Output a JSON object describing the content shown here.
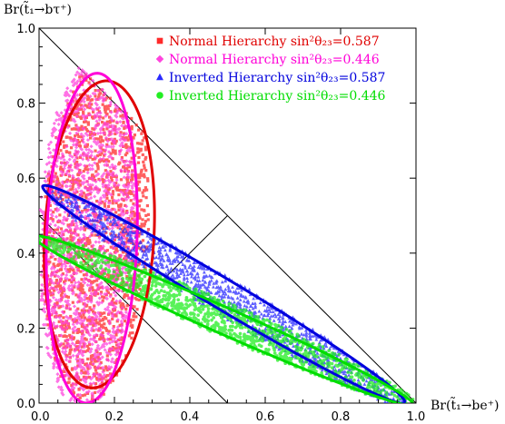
{
  "chart_data": {
    "type": "scatter",
    "title": "",
    "xlabel": "Br(t̃₁→be⁺)",
    "ylabel": "Br(t̃₁→bτ⁺)",
    "xlim": [
      0,
      1
    ],
    "ylim": [
      0,
      1
    ],
    "x_ticks": [
      "0.0",
      "0.2",
      "0.4",
      "0.6",
      "0.8",
      "1.0"
    ],
    "y_ticks": [
      "0.0",
      "0.2",
      "0.4",
      "0.6",
      "0.8",
      "1.0"
    ],
    "grid": false,
    "legend_position": "top-right",
    "reference_lines": [
      {
        "from": [
          0,
          1
        ],
        "to": [
          1,
          0
        ]
      },
      {
        "from": [
          0,
          0.5
        ],
        "to": [
          0.5,
          0
        ]
      },
      {
        "from": [
          0.333,
          0.333
        ],
        "to": [
          0.5,
          0.5
        ]
      }
    ],
    "series": [
      {
        "name": "Normal Hierarchy sin²θ₂₃=0.587",
        "marker": "square",
        "color": "#ff2a2a",
        "contour": {
          "cx": 0.16,
          "cy": 0.45,
          "rx": 0.145,
          "ry": 0.41,
          "angle": -3,
          "color": "#e00000"
        },
        "cloud": {
          "cx": 0.15,
          "cy": 0.46,
          "rx": 0.14,
          "ry": 0.46,
          "angle": -3,
          "n": 1700
        }
      },
      {
        "name": "Normal Hierarchy sin²θ₂₃=0.446",
        "marker": "diamond",
        "color": "#ff44dd",
        "contour": {
          "cx": 0.14,
          "cy": 0.44,
          "rx": 0.12,
          "ry": 0.44,
          "angle": -2,
          "color": "#ff00d8"
        },
        "cloud": {
          "cx": 0.13,
          "cy": 0.45,
          "rx": 0.13,
          "ry": 0.47,
          "angle": -2,
          "n": 1700
        }
      },
      {
        "name": "Inverted Hierarchy sin²θ₂₃=0.587",
        "marker": "triangle",
        "color": "#2a2aff",
        "contour": {
          "cx": 0.49,
          "cy": 0.29,
          "rx": 0.56,
          "ry": 0.04,
          "angle": -31,
          "color": "#0000dd"
        },
        "cloud": {
          "cx": 0.5,
          "cy": 0.28,
          "rx": 0.56,
          "ry": 0.05,
          "angle": -31,
          "n": 1300
        }
      },
      {
        "name": "Inverted Hierarchy sin²θ₂₃=0.446",
        "marker": "circle",
        "color": "#22ee22",
        "contour": {
          "cx": 0.49,
          "cy": 0.22,
          "rx": 0.55,
          "ry": 0.035,
          "angle": -24,
          "color": "#00dd00"
        },
        "cloud": {
          "cx": 0.5,
          "cy": 0.22,
          "rx": 0.55,
          "ry": 0.045,
          "angle": -24,
          "n": 1300
        }
      }
    ]
  }
}
